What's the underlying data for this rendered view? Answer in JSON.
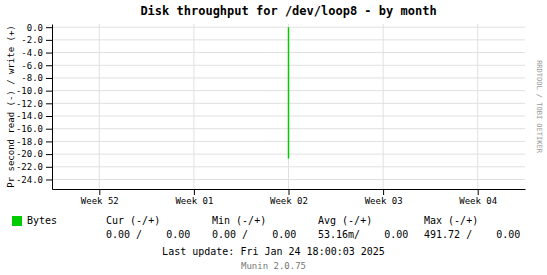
{
  "chart_data": {
    "type": "line",
    "title": "Disk throughput for /dev/loop8 - by month",
    "y_label": "Pr second read (-) / write (+)",
    "xlim": [
      -0.5,
      4.5
    ],
    "xticks": [
      {
        "value": 0,
        "label": "Week 52"
      },
      {
        "value": 1,
        "label": "Week 01"
      },
      {
        "value": 2,
        "label": "Week 02"
      },
      {
        "value": 3,
        "label": "Week 03"
      },
      {
        "value": 4,
        "label": "Week 04"
      }
    ],
    "ylim": [
      -25.5,
      0.5
    ],
    "yticks": [
      {
        "value": 0.0,
        "label": "0.0"
      },
      {
        "value": -2.0,
        "label": "-2.0"
      },
      {
        "value": -4.0,
        "label": "-4.0"
      },
      {
        "value": -6.0,
        "label": "-6.0"
      },
      {
        "value": -8.0,
        "label": "-8.0"
      },
      {
        "value": -10.0,
        "label": "-10.0"
      },
      {
        "value": -12.0,
        "label": "-12.0"
      },
      {
        "value": -14.0,
        "label": "-14.0"
      },
      {
        "value": -16.0,
        "label": "-16.0"
      },
      {
        "value": -18.0,
        "label": "-18.0"
      },
      {
        "value": -20.0,
        "label": "-20.0"
      },
      {
        "value": -22.0,
        "label": "-22.0"
      },
      {
        "value": -24.0,
        "label": "-24.0"
      }
    ],
    "grid": true,
    "legend": "bottom",
    "series": [
      {
        "name": "Bytes",
        "color": "#00cc00",
        "x": [
          2.0,
          2.0
        ],
        "values": [
          0.0,
          -20.7
        ]
      }
    ],
    "annotations": [
      "RRDTOOL / TOBI OETIKER",
      "Cur (-/+)",
      "Min (-/+)",
      "Avg (-/+)",
      "Max (-/+)",
      "0.00 /    0.00",
      "0.00 /    0.00",
      "53.16m/    0.00",
      "491.72 /    0.00",
      "Last update: Fri Jan 24 18:00:03 2025",
      "Munin 2.0.75"
    ]
  }
}
